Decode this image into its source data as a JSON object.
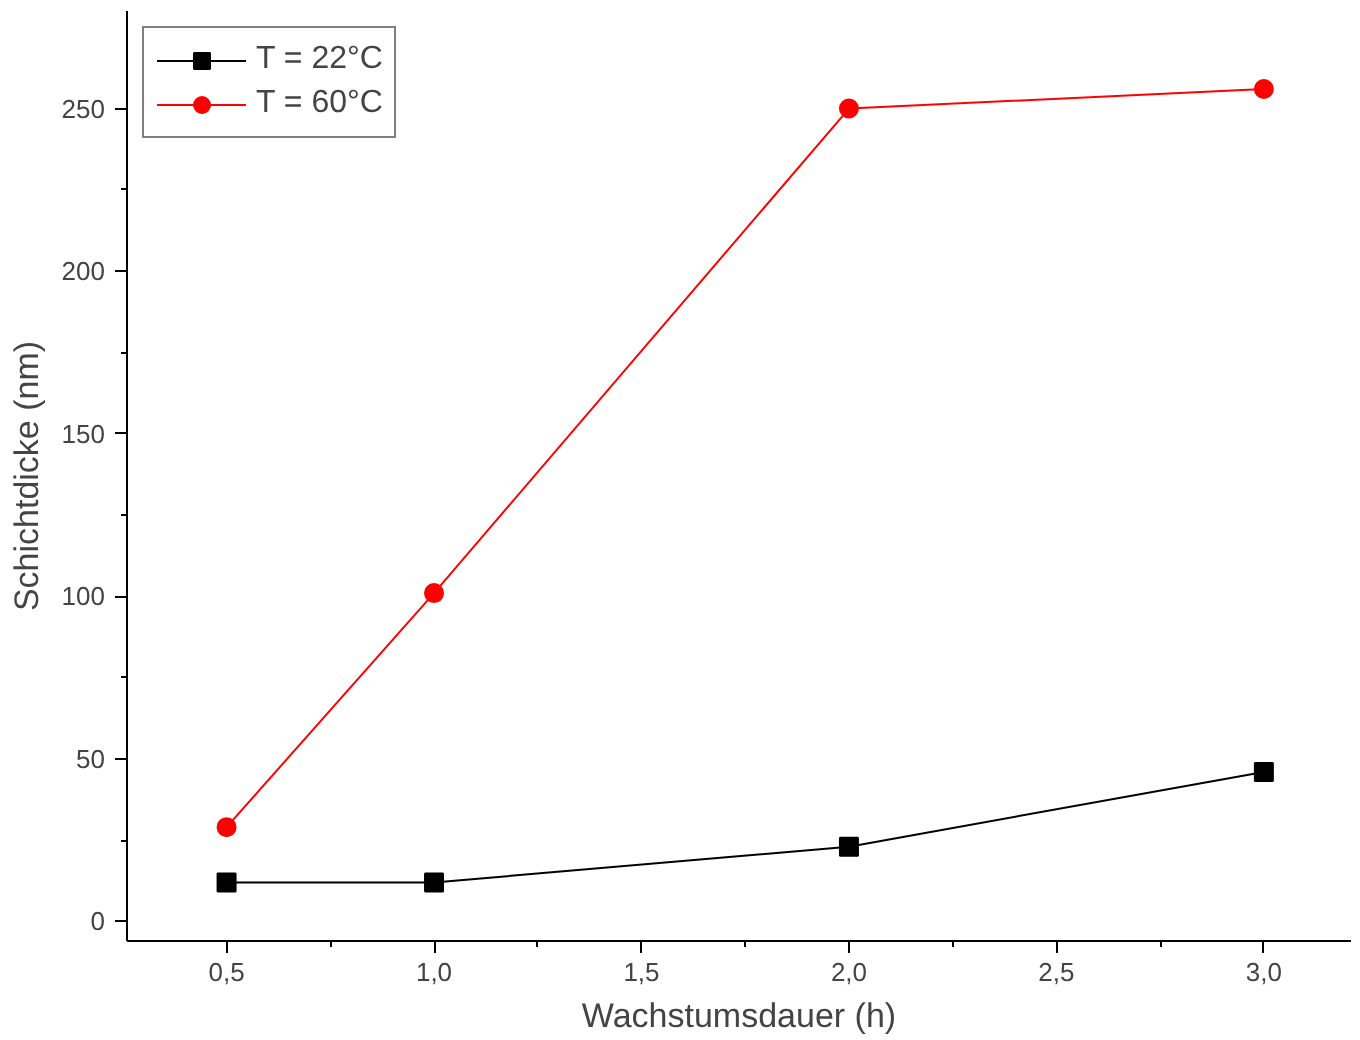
{
  "chart_data": {
    "type": "line",
    "xlabel": "Wachstumsdauer (h)",
    "ylabel": "Schichtdicke (nm)",
    "x": [
      0.5,
      1.0,
      2.0,
      3.0
    ],
    "series": [
      {
        "name": "T = 22°C",
        "color": "#000000",
        "marker": "square",
        "values": [
          12,
          12,
          23,
          46
        ]
      },
      {
        "name": "T = 60°C",
        "color": "#ff0000",
        "marker": "circle",
        "values": [
          29,
          101,
          250,
          256
        ]
      }
    ],
    "xlim": [
      0.26,
      3.21
    ],
    "ylim": [
      -6,
      280
    ],
    "xticks": [
      {
        "value": 0.5,
        "label": "0,5"
      },
      {
        "value": 1.0,
        "label": "1,0"
      },
      {
        "value": 1.5,
        "label": "1,5"
      },
      {
        "value": 2.0,
        "label": "2,0"
      },
      {
        "value": 2.5,
        "label": "2,5"
      },
      {
        "value": 3.0,
        "label": "3,0"
      }
    ],
    "yticks": [
      0,
      50,
      100,
      150,
      200,
      250
    ],
    "grid": false,
    "legend": "top left",
    "line_style": "solid"
  }
}
